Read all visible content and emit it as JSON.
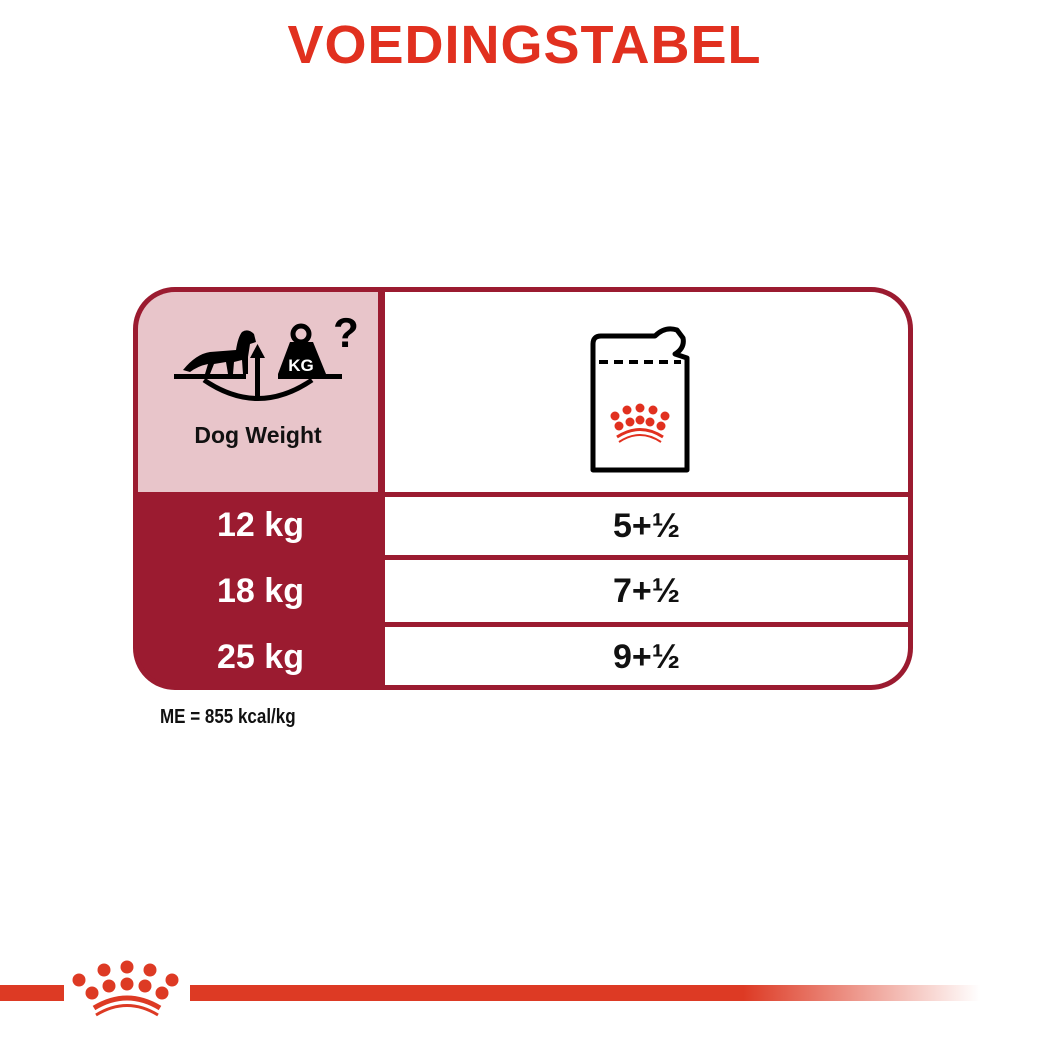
{
  "title": "VOEDINGSTABEL",
  "colors": {
    "brand_red": "#e1301f",
    "table_border": "#9b1b30",
    "header_pink": "#e8c5ca"
  },
  "table": {
    "header_left": {
      "icon": "dog-weighing-scale-icon",
      "weight_label": "KG",
      "label": "Dog Weight"
    },
    "header_right": {
      "icon": "wet-food-pouch-icon"
    },
    "rows": [
      {
        "weight": "12 kg",
        "amount": "5+½"
      },
      {
        "weight": "18 kg",
        "amount": "7+½"
      },
      {
        "weight": "25 kg",
        "amount": "9+½"
      }
    ]
  },
  "footnote": "ME = 855 kcal/kg",
  "logo": "royal-canin-crown-logo"
}
